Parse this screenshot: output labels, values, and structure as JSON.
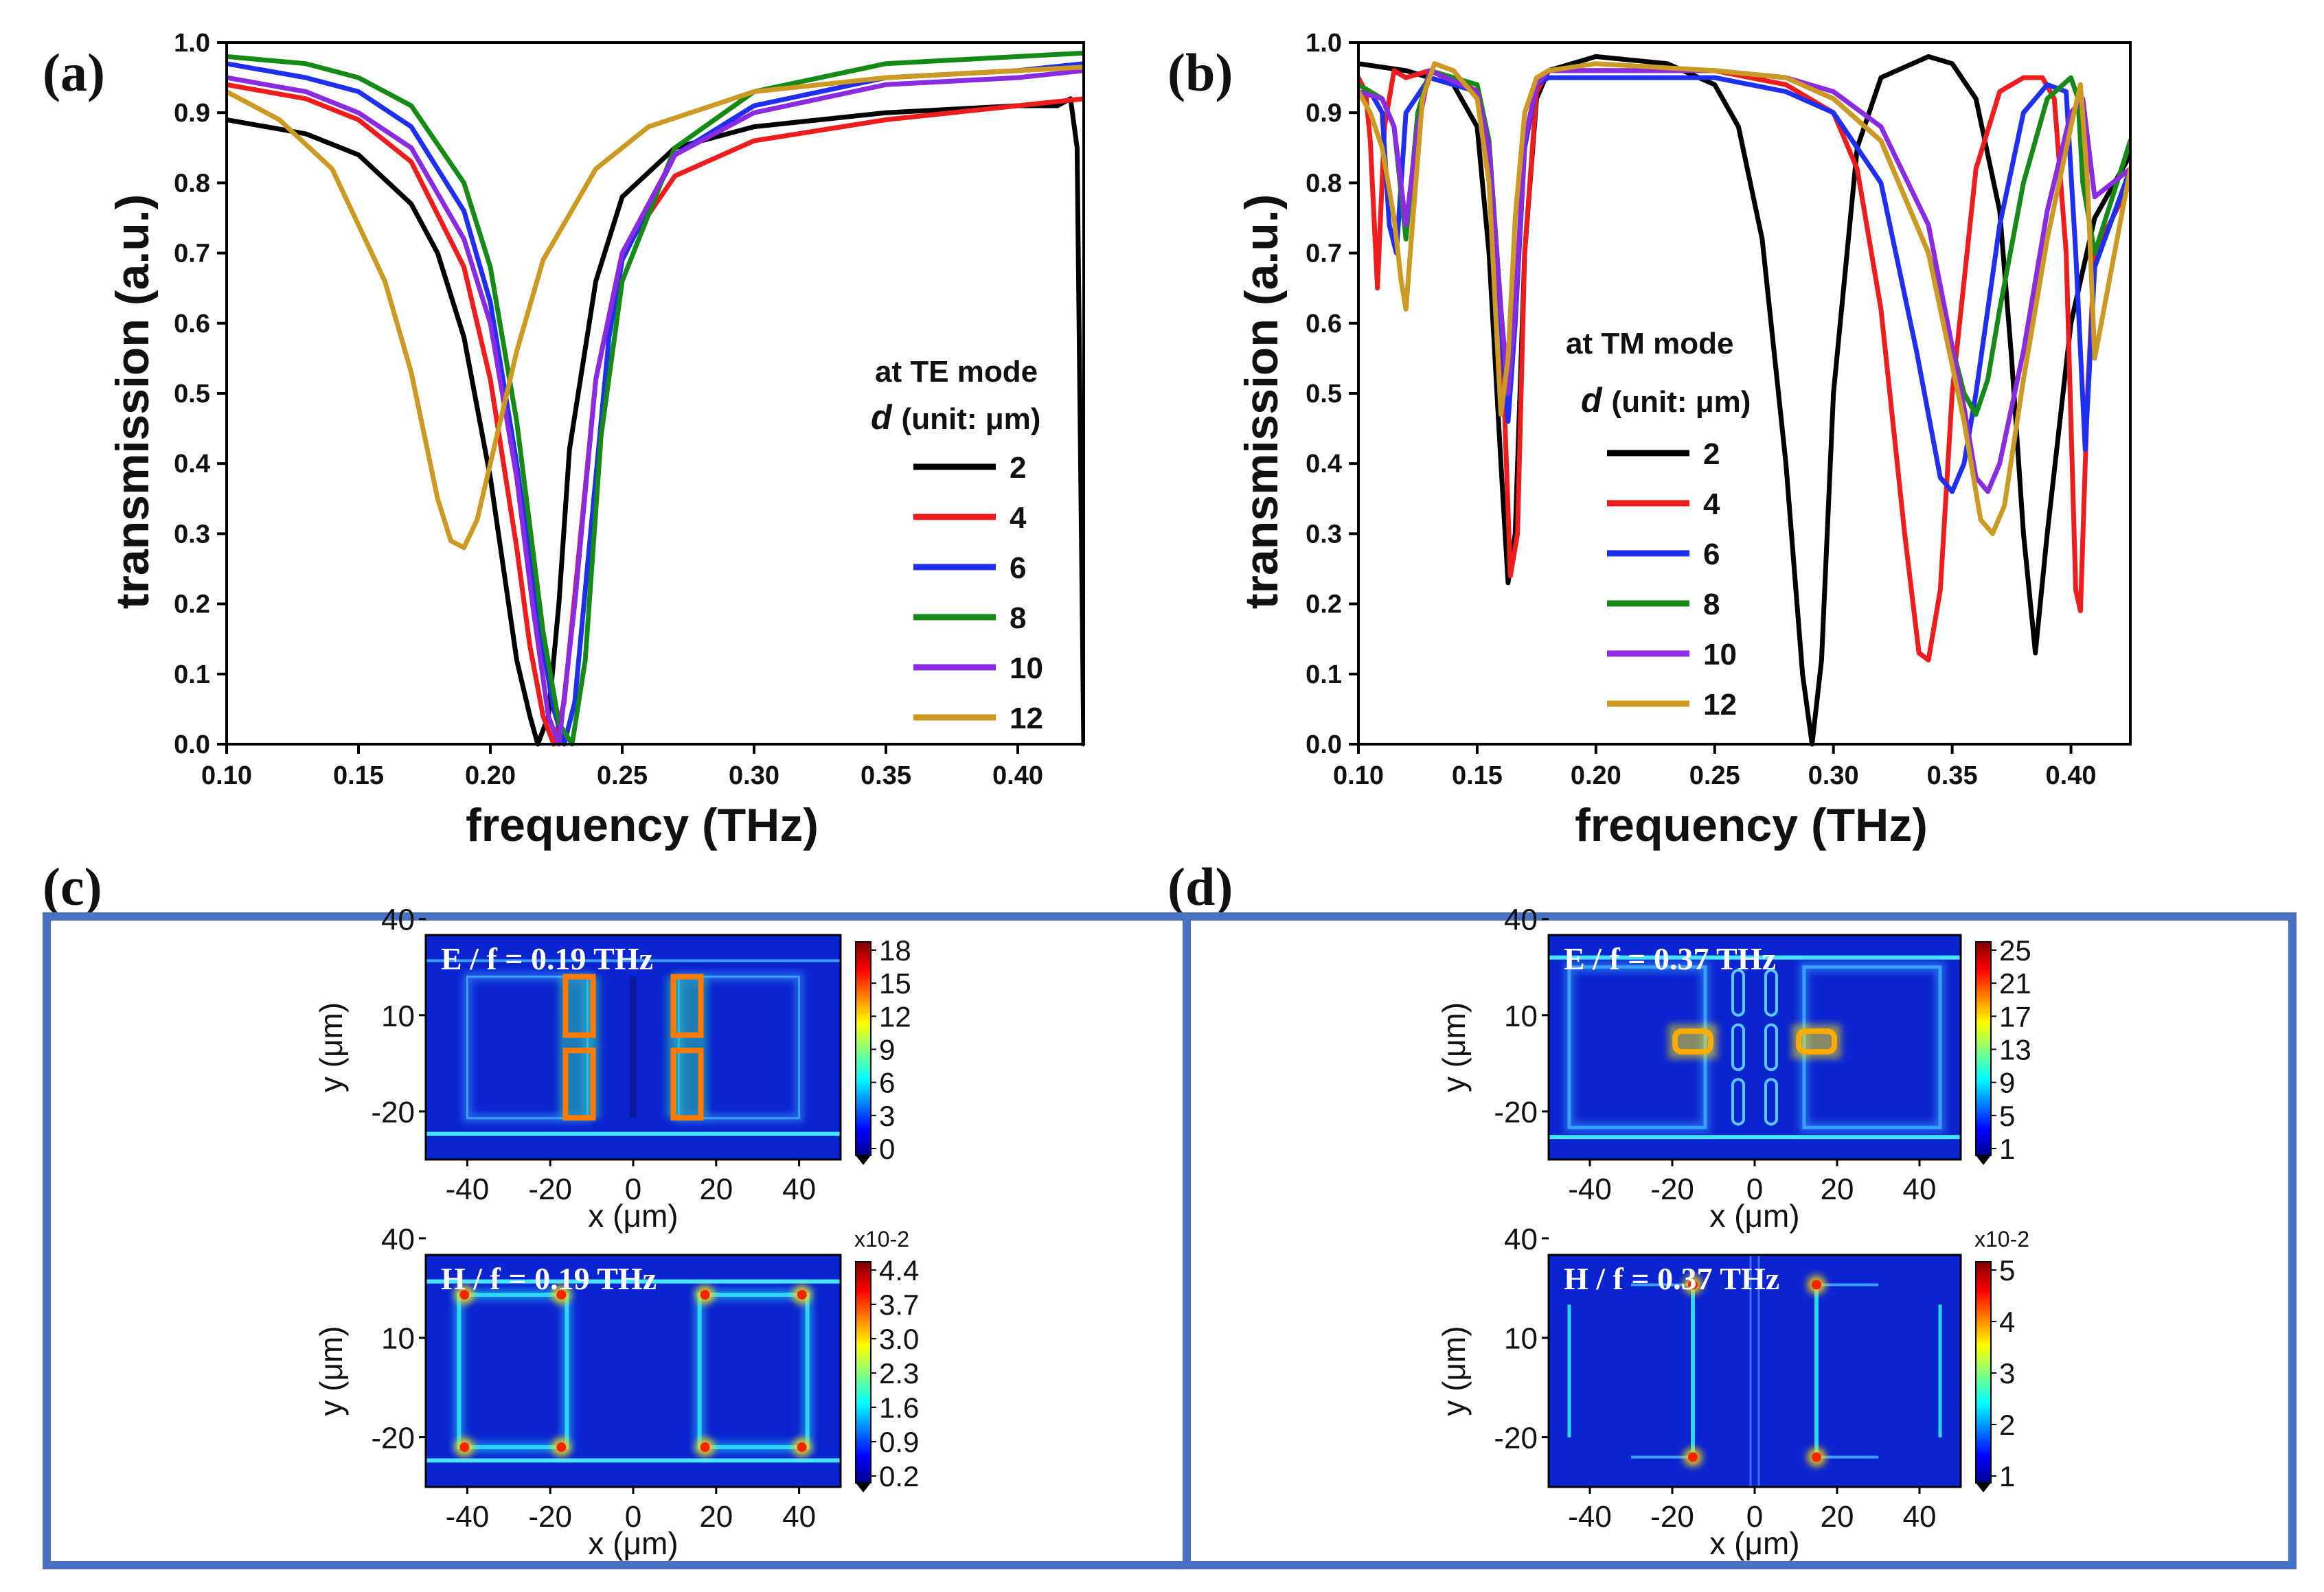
{
  "panels": {
    "a": "(a)",
    "b": "(b)",
    "c": "(c)",
    "d": "(d)"
  },
  "chart_data": [
    {
      "id": "a",
      "type": "line",
      "xlabel": "frequency (THz)",
      "ylabel": "transmission (a.u.)",
      "xlim": [
        0.1,
        0.425
      ],
      "ylim": [
        0.0,
        1.0
      ],
      "xticks": [
        "0.10",
        "0.15",
        "0.20",
        "0.25",
        "0.30",
        "0.35",
        "0.40"
      ],
      "yticks": [
        "0.0",
        "0.1",
        "0.2",
        "0.3",
        "0.4",
        "0.5",
        "0.6",
        "0.7",
        "0.8",
        "0.9",
        "1.0"
      ],
      "legend": {
        "mode": "at TE mode",
        "d_symbol": "d",
        "unit": "(unit: μm)",
        "placement": "center-right"
      },
      "series": [
        {
          "name": "2",
          "color": "#000000",
          "x": [
            0.1,
            0.13,
            0.15,
            0.17,
            0.18,
            0.19,
            0.2,
            0.205,
            0.21,
            0.215,
            0.218,
            0.222,
            0.226,
            0.23,
            0.24,
            0.25,
            0.27,
            0.3,
            0.35,
            0.4,
            0.415,
            0.42,
            0.4225,
            0.425
          ],
          "y": [
            0.89,
            0.87,
            0.84,
            0.77,
            0.7,
            0.58,
            0.38,
            0.25,
            0.12,
            0.04,
            0.0,
            0.04,
            0.2,
            0.42,
            0.66,
            0.78,
            0.85,
            0.88,
            0.9,
            0.91,
            0.91,
            0.92,
            0.85,
            0.0
          ]
        },
        {
          "name": "4",
          "color": "#ee1c1c",
          "x": [
            0.1,
            0.13,
            0.15,
            0.17,
            0.19,
            0.2,
            0.21,
            0.215,
            0.22,
            0.224,
            0.228,
            0.233,
            0.24,
            0.25,
            0.27,
            0.3,
            0.35,
            0.4,
            0.425
          ],
          "y": [
            0.94,
            0.92,
            0.89,
            0.83,
            0.68,
            0.52,
            0.28,
            0.14,
            0.04,
            0.0,
            0.06,
            0.25,
            0.52,
            0.7,
            0.81,
            0.86,
            0.89,
            0.91,
            0.92
          ]
        },
        {
          "name": "6",
          "color": "#1f2ff0",
          "x": [
            0.1,
            0.13,
            0.15,
            0.17,
            0.19,
            0.2,
            0.21,
            0.218,
            0.224,
            0.228,
            0.232,
            0.238,
            0.245,
            0.25,
            0.27,
            0.3,
            0.35,
            0.4,
            0.425
          ],
          "y": [
            0.97,
            0.95,
            0.93,
            0.88,
            0.76,
            0.63,
            0.4,
            0.18,
            0.05,
            0.0,
            0.06,
            0.3,
            0.58,
            0.69,
            0.84,
            0.91,
            0.95,
            0.96,
            0.97
          ]
        },
        {
          "name": "8",
          "color": "#168a16",
          "x": [
            0.1,
            0.13,
            0.15,
            0.17,
            0.19,
            0.2,
            0.21,
            0.22,
            0.226,
            0.231,
            0.236,
            0.242,
            0.25,
            0.27,
            0.3,
            0.35,
            0.4,
            0.425
          ],
          "y": [
            0.98,
            0.97,
            0.95,
            0.91,
            0.8,
            0.68,
            0.46,
            0.16,
            0.03,
            0.0,
            0.12,
            0.44,
            0.66,
            0.85,
            0.93,
            0.97,
            0.98,
            0.985
          ]
        },
        {
          "name": "10",
          "color": "#8a2be2",
          "x": [
            0.1,
            0.13,
            0.15,
            0.17,
            0.19,
            0.2,
            0.21,
            0.216,
            0.222,
            0.226,
            0.232,
            0.24,
            0.25,
            0.27,
            0.3,
            0.35,
            0.4,
            0.425
          ],
          "y": [
            0.95,
            0.93,
            0.9,
            0.85,
            0.72,
            0.6,
            0.38,
            0.2,
            0.04,
            0.0,
            0.2,
            0.52,
            0.7,
            0.84,
            0.9,
            0.94,
            0.95,
            0.96
          ]
        },
        {
          "name": "12",
          "color": "#cc9922",
          "x": [
            0.1,
            0.12,
            0.14,
            0.16,
            0.17,
            0.175,
            0.18,
            0.185,
            0.19,
            0.195,
            0.2,
            0.21,
            0.22,
            0.24,
            0.26,
            0.3,
            0.35,
            0.4,
            0.425
          ],
          "y": [
            0.93,
            0.89,
            0.82,
            0.66,
            0.53,
            0.44,
            0.35,
            0.29,
            0.28,
            0.32,
            0.4,
            0.56,
            0.69,
            0.82,
            0.88,
            0.93,
            0.95,
            0.96,
            0.965
          ]
        }
      ]
    },
    {
      "id": "b",
      "type": "line",
      "xlabel": "frequency (THz)",
      "ylabel": "transmission (a.u.)",
      "xlim": [
        0.1,
        0.425
      ],
      "ylim": [
        0.0,
        1.0
      ],
      "xticks": [
        "0.10",
        "0.15",
        "0.20",
        "0.25",
        "0.30",
        "0.35",
        "0.40"
      ],
      "yticks": [
        "0.0",
        "0.1",
        "0.2",
        "0.3",
        "0.4",
        "0.5",
        "0.6",
        "0.7",
        "0.8",
        "0.9",
        "1.0"
      ],
      "legend": {
        "mode": "at TM mode",
        "d_symbol": "d",
        "unit": "(unit: μm)",
        "placement": "center-left"
      },
      "series": [
        {
          "name": "2",
          "color": "#000000",
          "x": [
            0.1,
            0.12,
            0.14,
            0.15,
            0.155,
            0.16,
            0.163,
            0.166,
            0.17,
            0.175,
            0.18,
            0.2,
            0.23,
            0.25,
            0.26,
            0.27,
            0.28,
            0.287,
            0.291,
            0.295,
            0.3,
            0.31,
            0.32,
            0.34,
            0.35,
            0.36,
            0.37,
            0.375,
            0.38,
            0.385,
            0.39,
            0.4,
            0.41,
            0.425
          ],
          "y": [
            0.97,
            0.96,
            0.94,
            0.88,
            0.7,
            0.4,
            0.23,
            0.3,
            0.7,
            0.92,
            0.96,
            0.98,
            0.97,
            0.94,
            0.88,
            0.72,
            0.4,
            0.1,
            0.0,
            0.12,
            0.5,
            0.85,
            0.95,
            0.98,
            0.97,
            0.92,
            0.76,
            0.55,
            0.3,
            0.13,
            0.3,
            0.6,
            0.75,
            0.84
          ]
        },
        {
          "name": "4",
          "color": "#ee1c1c",
          "x": [
            0.1,
            0.103,
            0.105,
            0.108,
            0.111,
            0.115,
            0.12,
            0.13,
            0.14,
            0.15,
            0.155,
            0.16,
            0.164,
            0.167,
            0.17,
            0.175,
            0.18,
            0.2,
            0.25,
            0.28,
            0.3,
            0.31,
            0.32,
            0.33,
            0.336,
            0.34,
            0.345,
            0.35,
            0.36,
            0.37,
            0.38,
            0.388,
            0.393,
            0.398,
            0.402,
            0.404,
            0.407,
            0.41,
            0.425
          ],
          "y": [
            0.95,
            0.93,
            0.86,
            0.65,
            0.88,
            0.96,
            0.95,
            0.96,
            0.95,
            0.93,
            0.85,
            0.62,
            0.24,
            0.3,
            0.7,
            0.93,
            0.96,
            0.96,
            0.96,
            0.94,
            0.9,
            0.82,
            0.62,
            0.3,
            0.13,
            0.12,
            0.22,
            0.5,
            0.82,
            0.93,
            0.95,
            0.95,
            0.92,
            0.7,
            0.22,
            0.19,
            0.5,
            0.7,
            0.8
          ]
        },
        {
          "name": "6",
          "color": "#1f2ff0",
          "x": [
            0.1,
            0.105,
            0.11,
            0.113,
            0.116,
            0.12,
            0.13,
            0.15,
            0.155,
            0.16,
            0.163,
            0.166,
            0.17,
            0.175,
            0.18,
            0.2,
            0.25,
            0.28,
            0.3,
            0.32,
            0.335,
            0.345,
            0.35,
            0.355,
            0.36,
            0.37,
            0.38,
            0.39,
            0.398,
            0.402,
            0.406,
            0.408,
            0.41,
            0.425
          ],
          "y": [
            0.94,
            0.93,
            0.9,
            0.74,
            0.7,
            0.9,
            0.95,
            0.93,
            0.85,
            0.6,
            0.46,
            0.6,
            0.85,
            0.94,
            0.95,
            0.95,
            0.95,
            0.93,
            0.9,
            0.8,
            0.56,
            0.38,
            0.36,
            0.4,
            0.5,
            0.74,
            0.9,
            0.94,
            0.93,
            0.7,
            0.42,
            0.55,
            0.68,
            0.82
          ]
        },
        {
          "name": "8",
          "color": "#168a16",
          "x": [
            0.1,
            0.105,
            0.11,
            0.115,
            0.12,
            0.125,
            0.13,
            0.15,
            0.155,
            0.16,
            0.163,
            0.166,
            0.17,
            0.175,
            0.18,
            0.2,
            0.25,
            0.28,
            0.3,
            0.32,
            0.34,
            0.355,
            0.36,
            0.365,
            0.37,
            0.38,
            0.39,
            0.4,
            0.403,
            0.405,
            0.41,
            0.425
          ],
          "y": [
            0.94,
            0.93,
            0.92,
            0.88,
            0.72,
            0.9,
            0.96,
            0.94,
            0.86,
            0.62,
            0.5,
            0.62,
            0.86,
            0.94,
            0.96,
            0.96,
            0.96,
            0.95,
            0.92,
            0.86,
            0.7,
            0.5,
            0.47,
            0.52,
            0.62,
            0.8,
            0.92,
            0.95,
            0.92,
            0.8,
            0.7,
            0.86
          ]
        },
        {
          "name": "10",
          "color": "#8a2be2",
          "x": [
            0.1,
            0.11,
            0.115,
            0.12,
            0.125,
            0.13,
            0.15,
            0.155,
            0.16,
            0.163,
            0.166,
            0.17,
            0.175,
            0.18,
            0.2,
            0.25,
            0.28,
            0.3,
            0.32,
            0.34,
            0.355,
            0.36,
            0.365,
            0.37,
            0.38,
            0.39,
            0.4,
            0.405,
            0.41,
            0.425
          ],
          "y": [
            0.93,
            0.92,
            0.88,
            0.74,
            0.88,
            0.96,
            0.93,
            0.85,
            0.62,
            0.5,
            0.62,
            0.86,
            0.94,
            0.96,
            0.96,
            0.96,
            0.95,
            0.93,
            0.88,
            0.74,
            0.48,
            0.38,
            0.36,
            0.4,
            0.56,
            0.76,
            0.9,
            0.92,
            0.78,
            0.82
          ]
        },
        {
          "name": "12",
          "color": "#cc9922",
          "x": [
            0.1,
            0.105,
            0.11,
            0.115,
            0.118,
            0.12,
            0.123,
            0.127,
            0.132,
            0.14,
            0.15,
            0.155,
            0.158,
            0.16,
            0.163,
            0.166,
            0.17,
            0.175,
            0.18,
            0.2,
            0.25,
            0.28,
            0.3,
            0.32,
            0.34,
            0.355,
            0.362,
            0.367,
            0.372,
            0.38,
            0.39,
            0.4,
            0.404,
            0.407,
            0.41,
            0.425
          ],
          "y": [
            0.93,
            0.9,
            0.85,
            0.75,
            0.66,
            0.62,
            0.75,
            0.92,
            0.97,
            0.96,
            0.92,
            0.8,
            0.6,
            0.47,
            0.55,
            0.75,
            0.9,
            0.95,
            0.96,
            0.97,
            0.96,
            0.95,
            0.92,
            0.86,
            0.7,
            0.46,
            0.32,
            0.3,
            0.34,
            0.52,
            0.72,
            0.88,
            0.94,
            0.8,
            0.55,
            0.82
          ]
        }
      ]
    }
  ],
  "fieldmaps": {
    "c": {
      "E": {
        "title": "E / f = 0.19 THz",
        "ticks": [
          "18",
          "15",
          "12",
          "9",
          "6",
          "3",
          "0"
        ],
        "exp": ""
      },
      "H": {
        "title": "H / f = 0.19 THz",
        "ticks": [
          "4.4",
          "3.7",
          "3.0",
          "2.3",
          "1.6",
          "0.9",
          "0.2"
        ],
        "exp": "x10-2"
      }
    },
    "d": {
      "E": {
        "title": "E / f = 0.37 THz",
        "ticks": [
          "25",
          "21",
          "17",
          "13",
          "9",
          "5",
          "1"
        ],
        "exp": ""
      },
      "H": {
        "title": "H / f = 0.37 THz",
        "ticks": [
          "5",
          "4",
          "3",
          "2",
          "1"
        ],
        "exp": "x10-2"
      }
    },
    "xticks": [
      "-40",
      "-20",
      "0",
      "20",
      "40"
    ],
    "yticks": [
      "40",
      "10",
      "-20"
    ],
    "xlabel": "x (μm)",
    "ylabel": "y (μm)"
  },
  "colors": {
    "frame": "#4a72c4",
    "map_bg": "#0a24cf"
  }
}
